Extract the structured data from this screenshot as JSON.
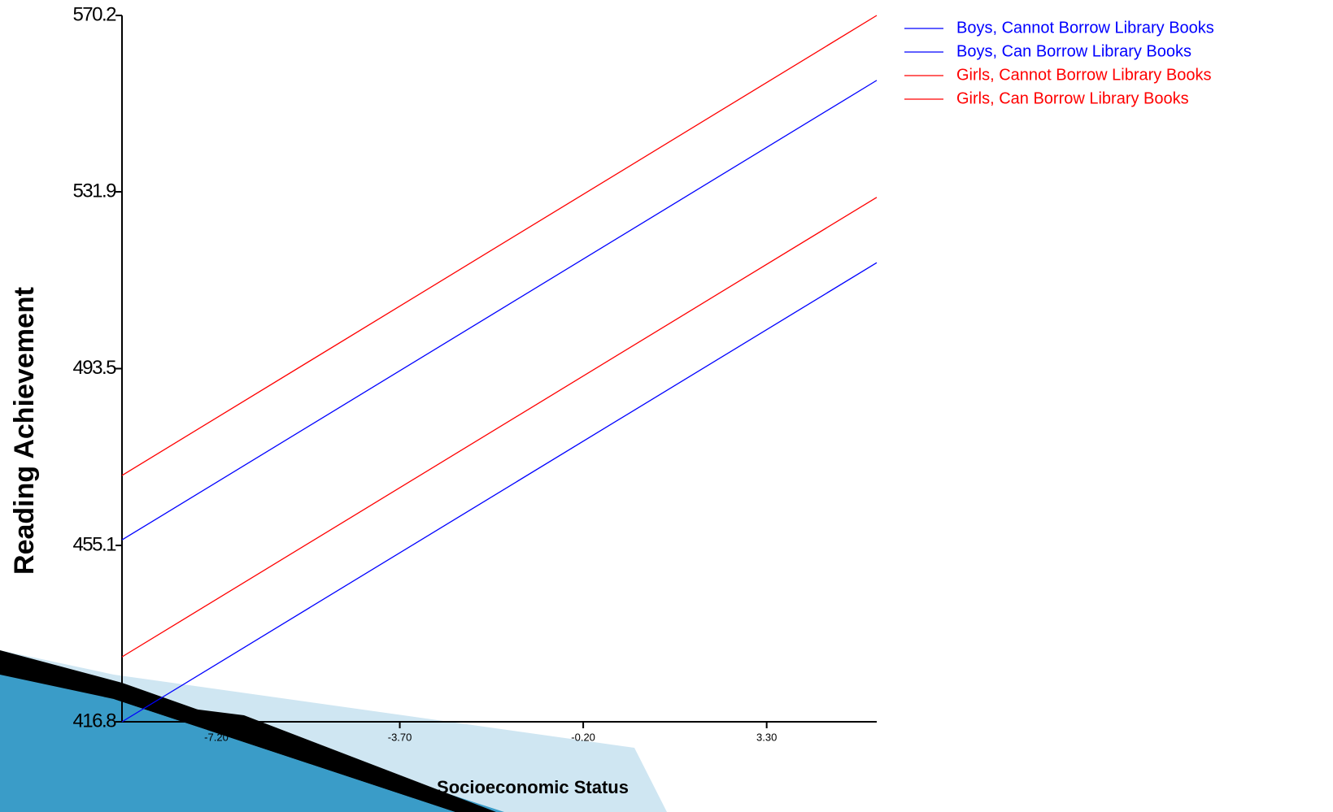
{
  "chart_data": {
    "type": "line",
    "x_label": "Socioeconomic Status",
    "y_label": "Reading Achievement",
    "series": [
      {
        "name": "Boys, Cannot Borrow Library Books",
        "color": "#0000ff",
        "x": [
          -9.0,
          5.4
        ],
        "values": [
          416.8,
          516.5
        ]
      },
      {
        "name": "Boys, Can Borrow Library Books",
        "color": "#0000ff",
        "x": [
          -9.0,
          5.4
        ],
        "values": [
          456.3,
          556.1
        ]
      },
      {
        "name": "Girls, Cannot Borrow Library Books",
        "color": "#ff0000",
        "x": [
          -9.0,
          5.4
        ],
        "values": [
          430.9,
          530.7
        ]
      },
      {
        "name": "Girls, Can Borrow Library Books",
        "color": "#ff0000",
        "x": [
          -9.0,
          5.4
        ],
        "values": [
          470.3,
          570.2
        ]
      }
    ],
    "xlim": [
      -9.0,
      5.4
    ],
    "xticks": [
      {
        "value": -7.2,
        "label": "-7.20"
      },
      {
        "value": -3.7,
        "label": "-3.70"
      },
      {
        "value": -0.2,
        "label": "-0.20"
      },
      {
        "value": 3.3,
        "label": "3.30"
      }
    ],
    "ylim": [
      416.8,
      570.2
    ],
    "yticks": [
      416.8,
      455.1,
      493.5,
      531.9,
      570.2
    ],
    "legend": "right"
  }
}
